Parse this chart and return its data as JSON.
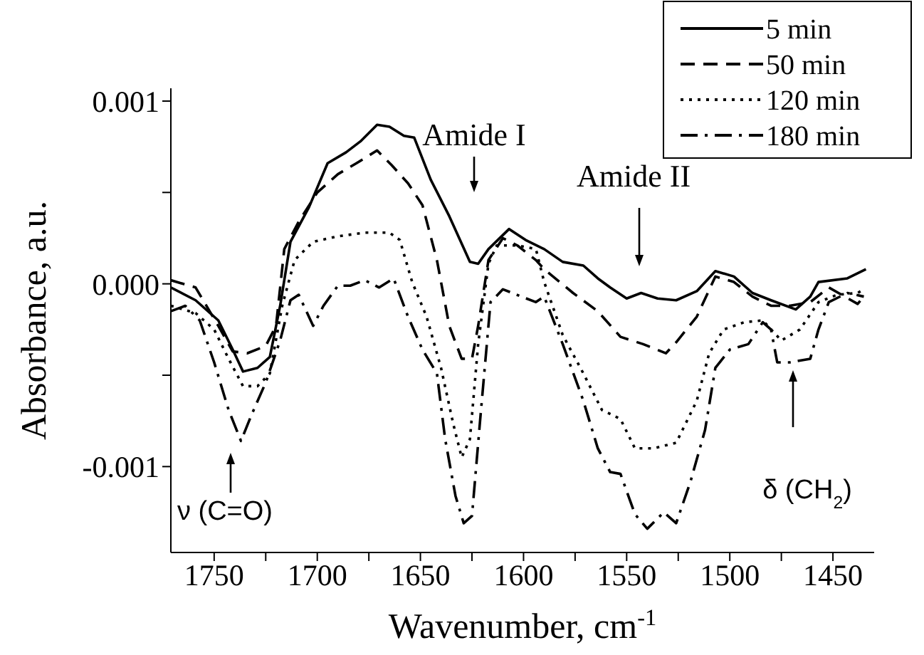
{
  "chart_data": {
    "type": "line",
    "xlabel": "Wavenumber, cm$^{-1}$",
    "ylabel": "Absorbance, a.u.",
    "xlim": [
      1771,
      1430
    ],
    "ylim": [
      -0.00147,
      0.00107
    ],
    "xticks": [
      1750,
      {
        "value": 1725,
        "label": null
      },
      1700,
      {
        "value": 1675,
        "label": null
      },
      1650,
      {
        "value": 1625,
        "label": null
      },
      1600,
      {
        "value": 1575,
        "label": null
      },
      1550,
      {
        "value": 1525,
        "label": null
      },
      1500,
      {
        "value": 1475,
        "label": null
      },
      1450
    ],
    "yticks": [
      -0.001,
      {
        "value": -0.0005,
        "label": null
      },
      {
        "value": 0,
        "label": "0.000"
      },
      {
        "value": 0.0005,
        "label": null
      },
      0.001
    ],
    "grid": false,
    "legend": "top right",
    "marker": "none",
    "annotations": [
      "Amide I",
      "Amide II",
      "ν (C=O)",
      "δ (CH$_{2}$)"
    ],
    "series": [
      {
        "name": "5 min",
        "color": "#000000",
        "line_style": "solid",
        "x": [
          1771,
          1759,
          1748,
          1741,
          1736,
          1729,
          1723,
          1718,
          1713,
          1704,
          1695,
          1686,
          1679,
          1671,
          1665,
          1658,
          1653,
          1645,
          1636,
          1626,
          1622,
          1617,
          1607,
          1599,
          1590,
          1581,
          1571,
          1564,
          1558,
          1550,
          1543,
          1535,
          1526,
          1516,
          1507,
          1498,
          1489,
          1480,
          1468,
          1461,
          1457,
          1443,
          1434
        ],
        "values": [
          -2e-05,
          -9e-05,
          -0.0002,
          -0.00036,
          -0.00048,
          -0.00046,
          -0.0004,
          -0.00012,
          0.00023,
          0.00042,
          0.00066,
          0.00072,
          0.00078,
          0.00087,
          0.00086,
          0.00081,
          0.0008,
          0.00057,
          0.00037,
          0.00012,
          0.00011,
          0.00019,
          0.0003,
          0.00024,
          0.00019,
          0.00012,
          0.0001,
          3e-05,
          -2e-05,
          -8e-05,
          -5e-05,
          -8e-05,
          -9e-05,
          -4e-05,
          7e-05,
          4e-05,
          -5e-05,
          -9e-05,
          -0.00014,
          -7e-05,
          1e-05,
          3e-05,
          8e-05
        ]
      },
      {
        "name": "50 min",
        "color": "#000000",
        "line_style": "dashed",
        "x": [
          1771,
          1759,
          1748,
          1741,
          1734,
          1725,
          1720,
          1716,
          1709,
          1700,
          1690,
          1681,
          1671,
          1664,
          1656,
          1649,
          1642,
          1636,
          1630,
          1625,
          1622,
          1617,
          1610,
          1603,
          1594,
          1590,
          1576,
          1564,
          1553,
          1542,
          1531,
          1526,
          1516,
          1507,
          1498,
          1489,
          1480,
          1471,
          1461,
          1452,
          1438,
          1435
        ],
        "values": [
          2e-05,
          -2e-05,
          -0.00023,
          -0.00037,
          -0.00038,
          -0.00034,
          -0.00023,
          0.00019,
          0.00034,
          0.0005,
          0.0006,
          0.00066,
          0.00073,
          0.00065,
          0.00055,
          0.00043,
          0.00013,
          -0.00023,
          -0.00041,
          -0.00041,
          -0.00023,
          0.00013,
          0.00025,
          0.00021,
          0.00013,
          8e-05,
          -5e-05,
          -0.00015,
          -0.00029,
          -0.00033,
          -0.00038,
          -0.00032,
          -0.00018,
          4e-05,
          1e-05,
          -7e-05,
          -0.00012,
          -0.00012,
          -0.0001,
          -2e-05,
          -0.00011,
          -7e-05
        ]
      },
      {
        "name": "120 min",
        "color": "#000000",
        "line_style": "dotted",
        "x": [
          1771,
          1759,
          1750,
          1743,
          1736,
          1729,
          1723,
          1717,
          1711,
          1702,
          1690,
          1677,
          1665,
          1660,
          1654,
          1647,
          1640,
          1634,
          1630,
          1626,
          1622,
          1617,
          1613,
          1603,
          1594,
          1590,
          1581,
          1571,
          1562,
          1553,
          1546,
          1537,
          1526,
          1516,
          1510,
          1503,
          1493,
          1484,
          1475,
          1466,
          1457,
          1448,
          1438,
          1435
        ],
        "values": [
          -0.00012,
          -0.00016,
          -0.00025,
          -0.00041,
          -0.00056,
          -0.00056,
          -0.00049,
          -0.00012,
          0.00013,
          0.00023,
          0.00026,
          0.00028,
          0.00028,
          0.00024,
          1e-05,
          -0.00018,
          -0.00046,
          -0.00077,
          -0.00095,
          -0.00085,
          -0.00033,
          0.00011,
          0.00021,
          0.00021,
          0.00019,
          1e-05,
          -0.00028,
          -0.00049,
          -0.00069,
          -0.00074,
          -0.0009,
          -0.0009,
          -0.00087,
          -0.00064,
          -0.00038,
          -0.00025,
          -0.00021,
          -0.0002,
          -0.00031,
          -0.00025,
          -0.0001,
          -6e-05,
          -5e-05,
          -3e-05
        ]
      },
      {
        "name": "180 min",
        "color": "#000000",
        "line_style": "dashdot",
        "x": [
          1771,
          1764,
          1757,
          1750,
          1743,
          1737,
          1732,
          1725,
          1718,
          1713,
          1709,
          1702,
          1697,
          1690,
          1684,
          1677,
          1670,
          1663,
          1656,
          1649,
          1642,
          1638,
          1633,
          1629,
          1625,
          1621,
          1616,
          1610,
          1601,
          1594,
          1590,
          1581,
          1571,
          1564,
          1558,
          1553,
          1546,
          1540,
          1532,
          1526,
          1519,
          1512,
          1507,
          1500,
          1491,
          1484,
          1480,
          1477,
          1471,
          1461,
          1457,
          1452,
          1443,
          1435
        ],
        "values": [
          -0.00015,
          -0.00012,
          -0.0002,
          -0.00043,
          -0.00069,
          -0.00086,
          -0.00072,
          -0.00054,
          -0.00031,
          -9e-05,
          -6e-05,
          -0.00023,
          -0.00012,
          -1e-05,
          -1e-05,
          2e-05,
          -2e-05,
          3e-05,
          -0.00018,
          -0.00036,
          -0.00049,
          -0.00085,
          -0.00116,
          -0.00131,
          -0.00127,
          -0.00074,
          -0.0001,
          -3e-05,
          -7e-05,
          -0.0001,
          -7e-05,
          -0.00033,
          -0.00064,
          -0.0009,
          -0.00103,
          -0.00104,
          -0.00126,
          -0.00134,
          -0.00125,
          -0.00131,
          -0.00108,
          -0.0008,
          -0.00046,
          -0.00036,
          -0.00033,
          -0.00021,
          -0.00025,
          -0.00043,
          -0.00043,
          -0.00041,
          -0.00025,
          -0.0001,
          -5e-05,
          -7e-05
        ]
      }
    ]
  }
}
